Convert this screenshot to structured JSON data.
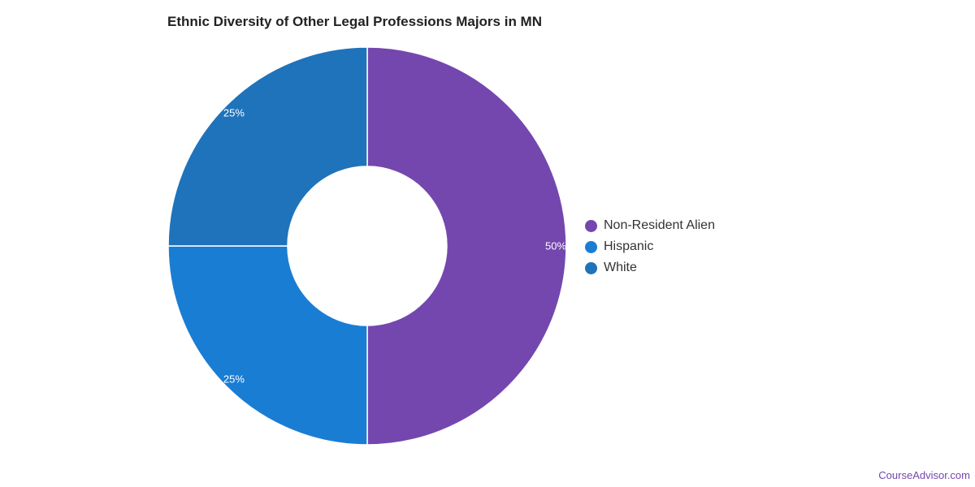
{
  "chart_data": {
    "type": "pie",
    "title": "Ethnic Diversity of Other Legal Professions Majors in MN",
    "donut": true,
    "slices": [
      {
        "label": "Non-Resident Alien",
        "value": 50,
        "display": "50%",
        "color": "#7447ae"
      },
      {
        "label": "Hispanic",
        "value": 25,
        "display": "25%",
        "color": "#1a7dd4"
      },
      {
        "label": "White",
        "value": 25,
        "display": "25%",
        "color": "#1f73ba"
      }
    ],
    "legend_position": "right"
  },
  "credit": "CourseAdvisor.com"
}
